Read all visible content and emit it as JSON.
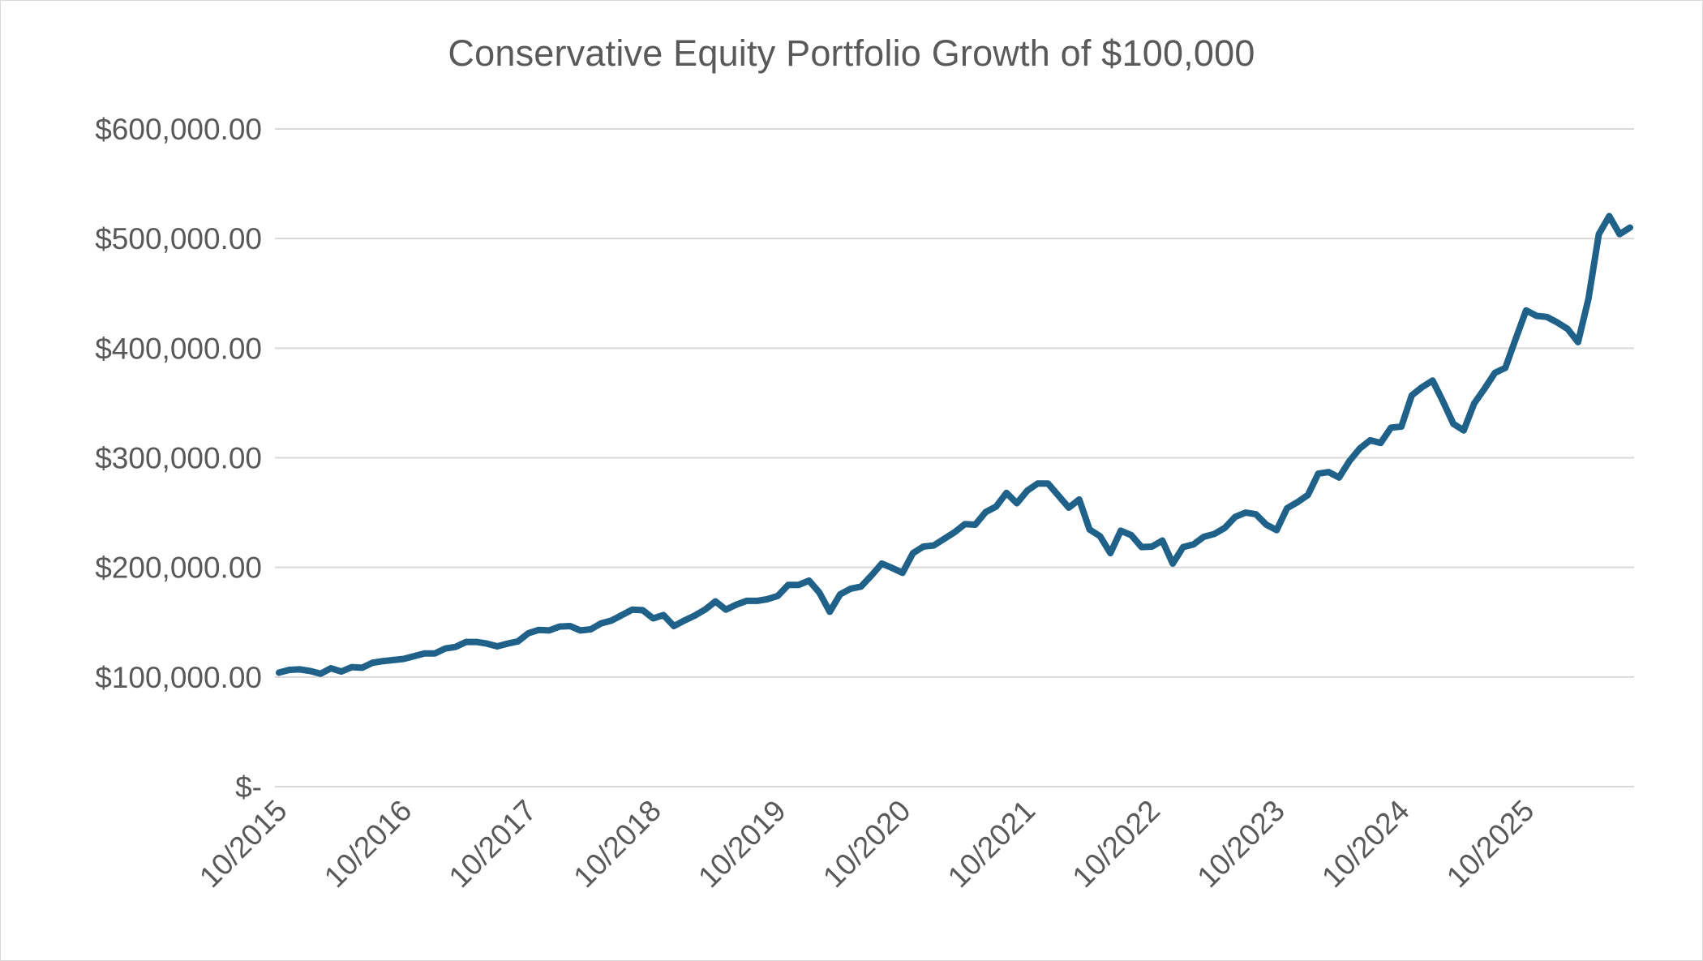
{
  "chart_data": {
    "type": "line",
    "title": "Conservative Equity Portfolio Growth of $100,000",
    "xlabel": "",
    "ylabel": "",
    "ylim": [
      0,
      600000
    ],
    "grid": true,
    "legend": "none",
    "y_ticks": [
      {
        "value": 0,
        "label": "$-"
      },
      {
        "value": 100000,
        "label": "$100,000.00"
      },
      {
        "value": 200000,
        "label": "$200,000.00"
      },
      {
        "value": 300000,
        "label": "$300,000.00"
      },
      {
        "value": 400000,
        "label": "$400,000.00"
      },
      {
        "value": 500000,
        "label": "$500,000.00"
      },
      {
        "value": 600000,
        "label": "$600,000.00"
      }
    ],
    "x_ticks": [
      "10/2015",
      "10/2016",
      "10/2017",
      "10/2018",
      "10/2019",
      "10/2020",
      "10/2021",
      "10/2022",
      "10/2023",
      "10/2024",
      "10/2025"
    ],
    "colors": {
      "line": "#1f6188",
      "grid": "#d9d9d9",
      "text": "#595959"
    },
    "series": [
      {
        "name": "",
        "x": [
          "10/2015",
          "11/2015",
          "12/2015",
          "01/2016",
          "02/2016",
          "03/2016",
          "04/2016",
          "05/2016",
          "06/2016",
          "07/2016",
          "08/2016",
          "09/2016",
          "10/2016",
          "11/2016",
          "12/2016",
          "01/2017",
          "02/2017",
          "03/2017",
          "04/2017",
          "05/2017",
          "06/2017",
          "07/2017",
          "08/2017",
          "09/2017",
          "10/2017",
          "11/2017",
          "12/2017",
          "01/2018",
          "02/2018",
          "03/2018",
          "04/2018",
          "05/2018",
          "06/2018",
          "07/2018",
          "08/2018",
          "09/2018",
          "10/2018",
          "11/2018",
          "12/2018",
          "01/2019",
          "02/2019",
          "03/2019",
          "04/2019",
          "05/2019",
          "06/2019",
          "07/2019",
          "08/2019",
          "09/2019",
          "10/2019",
          "11/2019",
          "12/2019",
          "01/2020",
          "02/2020",
          "03/2020",
          "04/2020",
          "05/2020",
          "06/2020",
          "07/2020",
          "08/2020",
          "09/2020",
          "10/2020",
          "11/2020",
          "12/2020",
          "01/2021",
          "02/2021",
          "03/2021",
          "04/2021",
          "05/2021",
          "06/2021",
          "07/2021",
          "08/2021",
          "09/2021",
          "10/2021",
          "11/2021",
          "12/2021",
          "01/2022",
          "02/2022",
          "03/2022",
          "04/2022",
          "05/2022",
          "06/2022",
          "07/2022",
          "08/2022",
          "09/2022",
          "10/2022",
          "11/2022",
          "12/2022",
          "01/2023",
          "02/2023",
          "03/2023",
          "04/2023",
          "05/2023",
          "06/2023",
          "07/2023",
          "08/2023",
          "09/2023",
          "10/2023",
          "11/2023",
          "12/2023",
          "01/2024",
          "02/2024",
          "03/2024",
          "04/2024",
          "05/2024",
          "06/2024",
          "07/2024",
          "08/2024",
          "09/2024",
          "10/2024",
          "11/2024",
          "12/2024",
          "01/2025",
          "02/2025",
          "03/2025",
          "04/2025",
          "05/2025",
          "06/2025",
          "07/2025",
          "08/2025",
          "09/2025",
          "10/2025",
          "11/2025",
          "12/2025",
          "01/2026",
          "02/2026",
          "03/2026",
          "04/2026",
          "05/2026",
          "06/2026",
          "07/2026",
          "08/2026"
        ],
        "values": [
          104000,
          106500,
          107000,
          105500,
          103000,
          108000,
          105000,
          109000,
          108500,
          113000,
          114500,
          115500,
          116500,
          119000,
          121500,
          121500,
          126000,
          127500,
          132000,
          132000,
          130500,
          128000,
          130500,
          132500,
          140000,
          143000,
          142500,
          146000,
          146500,
          142500,
          143500,
          149000,
          151500,
          156500,
          161500,
          161000,
          153500,
          156500,
          146500,
          151500,
          156000,
          161500,
          169000,
          161500,
          166000,
          169500,
          169500,
          171000,
          174000,
          184000,
          184000,
          188000,
          177000,
          159500,
          175500,
          180500,
          182500,
          192500,
          203500,
          199500,
          195000,
          213000,
          219000,
          220000,
          226000,
          232000,
          239500,
          239000,
          250500,
          255500,
          268000,
          258500,
          270000,
          276500,
          276500,
          265500,
          254500,
          262000,
          234500,
          228500,
          213000,
          233500,
          229500,
          218500,
          219000,
          224500,
          203500,
          218500,
          221000,
          228000,
          230500,
          236000,
          246000,
          250000,
          248500,
          239000,
          234000,
          254000,
          259500,
          266000,
          285500,
          287000,
          282000,
          297000,
          308500,
          316000,
          313500,
          327500,
          328500,
          357000,
          364500,
          370500,
          351500,
          331000,
          325000,
          349500,
          363000,
          377500,
          382000,
          408500,
          434500,
          429500,
          428500,
          423500,
          417500,
          405500,
          445000,
          504000,
          520500,
          504000,
          510000
        ]
      }
    ]
  }
}
